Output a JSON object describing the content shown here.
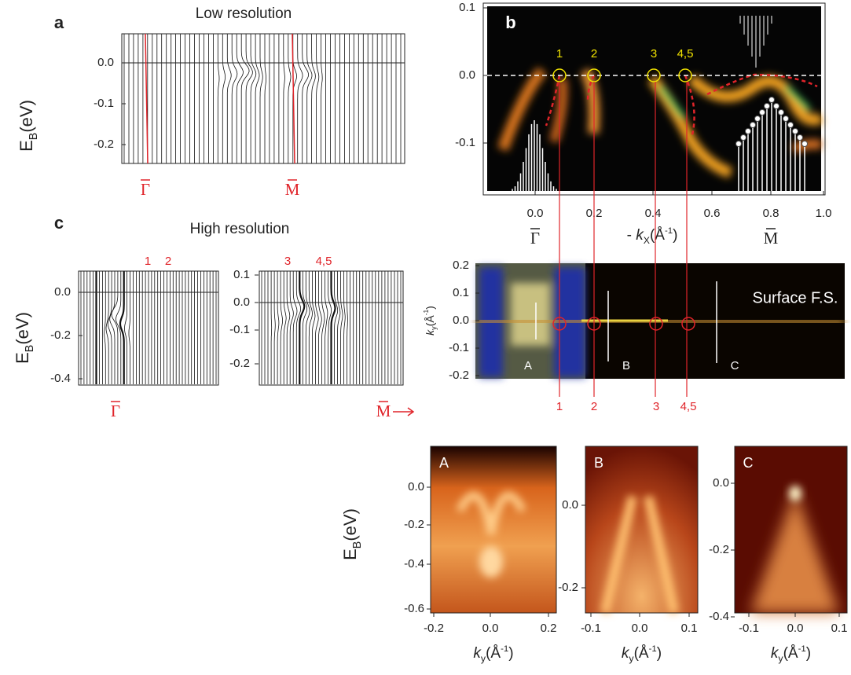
{
  "panel_a": {
    "label": "a",
    "title": "Low resolution",
    "y_label": {
      "main": "E",
      "sub": "B",
      "unit": "(eV)"
    },
    "yticks": [
      "0.0",
      "-0.1",
      "-0.2"
    ],
    "points": [
      "Γ",
      "M"
    ]
  },
  "panel_b": {
    "label": "b",
    "yticks": [
      "0.1",
      "0.0",
      "-0.1"
    ],
    "xticks": [
      "0.0",
      "0.2",
      "0.4",
      "0.6",
      "0.8",
      "1.0"
    ],
    "markers": [
      "1",
      "2",
      "3",
      "4,5"
    ],
    "x_label": {
      "prefix": "- ",
      "main": "k",
      "sub": "X",
      "unit": "(Å",
      "sup": "-1",
      "close": ")"
    },
    "points": [
      "Γ",
      "M"
    ]
  },
  "panel_c": {
    "label": "c",
    "title": "High resolution",
    "y_label": {
      "main": "E",
      "sub": "B",
      "unit": "(eV)"
    },
    "markers_left": [
      "1",
      "2"
    ],
    "markers_right": [
      "3",
      "4,5"
    ],
    "yticks_left": [
      "0.0",
      "-0.2",
      "-0.4"
    ],
    "yticks_right": [
      "0.1",
      "0.0",
      "-0.1",
      "-0.2"
    ],
    "points": [
      "Γ",
      "M"
    ]
  },
  "fs_map": {
    "title": "Surface F.S.",
    "y_label": {
      "main": "k",
      "sub": "y",
      "unit": "(Å",
      "sup": "-1",
      "close": ")"
    },
    "yticks": [
      "0.2",
      "0.1",
      "0.0",
      "-0.1",
      "-0.2"
    ],
    "cuts": [
      "A",
      "B",
      "C"
    ],
    "markers": [
      "1",
      "2",
      "3",
      "4,5"
    ]
  },
  "cuts": {
    "y_label": {
      "main": "E",
      "sub": "B",
      "unit": "(eV)"
    },
    "x_label": {
      "main": "k",
      "sub": "y",
      "unit": "(Å",
      "sup": "-1",
      "close": ")"
    },
    "panels": [
      {
        "label": "A",
        "yticks": [
          "0.0",
          "-0.2",
          "-0.4",
          "-0.6"
        ],
        "xticks": [
          "-0.2",
          "0.0",
          "0.2"
        ]
      },
      {
        "label": "B",
        "yticks": [
          "0.0",
          "-0.2"
        ],
        "xticks": [
          "-0.1",
          "0.0",
          "0.1"
        ]
      },
      {
        "label": "C",
        "yticks": [
          "0.0",
          "-0.2",
          "-0.4"
        ],
        "xticks": [
          "-0.1",
          "0.0",
          "0.1"
        ]
      }
    ]
  }
}
